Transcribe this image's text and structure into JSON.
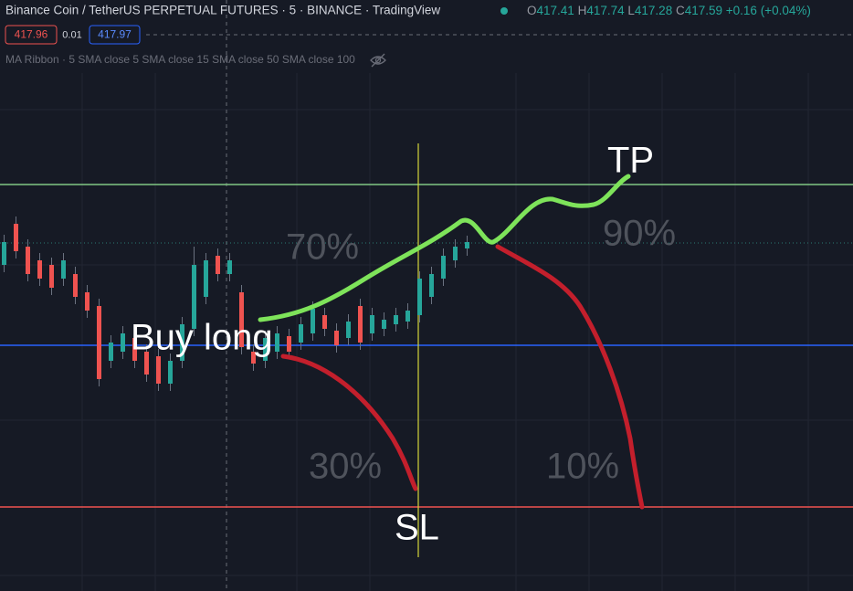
{
  "header": {
    "title": "Binance Coin / TetherUS PERPETUAL FUTURES · 5 · BINANCE · TradingView",
    "ohlc": [
      {
        "label": "O",
        "value": "417.41"
      },
      {
        "label": "H",
        "value": "417.74"
      },
      {
        "label": "L",
        "value": "417.28"
      },
      {
        "label": "C",
        "value": "417.59"
      }
    ],
    "change": "+0.16 (+0.04%)"
  },
  "price_boxes": {
    "sell": "417.96",
    "spread": "0.01",
    "buy": "417.97"
  },
  "indicator": "MA Ribbon · 5 SMA close 5 SMA close 15 SMA close 50 SMA close 100",
  "annotations": {
    "take_profit": "TP",
    "stop_loss": "SL",
    "entry": "Buy long",
    "probabilities": [
      "70%",
      "30%",
      "90%",
      "10%"
    ]
  }
}
